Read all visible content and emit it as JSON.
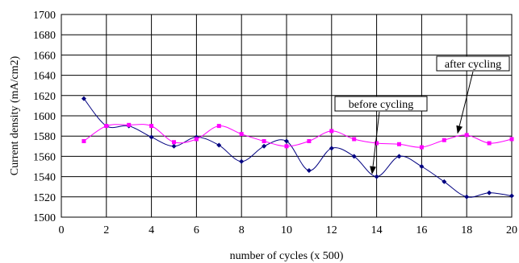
{
  "chart_data": {
    "type": "line",
    "title": "",
    "xlabel": "number of cycles (x 500)",
    "ylabel": "Current density (mA/cm2)",
    "xlim": [
      0,
      20
    ],
    "ylim": [
      1500,
      1700
    ],
    "x_ticks": [
      0,
      2,
      4,
      6,
      8,
      10,
      12,
      14,
      16,
      18,
      20
    ],
    "y_ticks": [
      1500,
      1520,
      1540,
      1560,
      1580,
      1600,
      1620,
      1640,
      1660,
      1680,
      1700
    ],
    "grid": true,
    "smooth": true,
    "series": [
      {
        "color": "#000080",
        "marker": "diamond",
        "x": [
          1,
          2,
          3,
          4,
          5,
          6,
          7,
          8,
          9,
          10,
          11,
          12,
          13,
          14,
          15,
          16,
          17,
          18,
          19,
          20
        ],
        "values": [
          1617,
          1590,
          1590,
          1579,
          1570,
          1579,
          1571,
          1555,
          1570,
          1575,
          1546,
          1568,
          1560,
          1540,
          1560,
          1550,
          1535,
          1520,
          1524,
          1521
        ]
      },
      {
        "color": "#ff00ff",
        "marker": "square",
        "x": [
          1,
          2,
          3,
          4,
          5,
          6,
          7,
          8,
          9,
          10,
          11,
          12,
          13,
          14,
          15,
          16,
          17,
          18,
          19,
          20
        ],
        "values": [
          1575,
          1590,
          1591,
          1590,
          1574,
          1577,
          1590,
          1582,
          1575,
          1570,
          1575,
          1585,
          1577,
          1573,
          1572,
          1569,
          1576,
          1581,
          1573,
          1577
        ]
      }
    ],
    "annotations": [
      {
        "text": "before cycling",
        "target_series": 0,
        "target_x": 13.8,
        "target_y": 1543
      },
      {
        "text": "after cycling",
        "target_series": 1,
        "target_x": 17.6,
        "target_y": 1583
      }
    ]
  }
}
